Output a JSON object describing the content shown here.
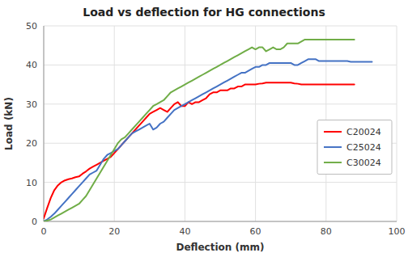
{
  "chart_data": {
    "type": "line",
    "title": "Load vs deflection for HG connections",
    "xlabel": "Deflection (mm)",
    "ylabel": "Load (kN)",
    "xlim": [
      0,
      100
    ],
    "ylim": [
      0,
      50
    ],
    "xticks": [
      0,
      20,
      40,
      60,
      80,
      100
    ],
    "yticks": [
      0,
      10,
      20,
      30,
      40,
      50
    ],
    "grid": true,
    "legend": "right",
    "series": [
      {
        "name": "C20024",
        "color": "#FF0000",
        "x": [
          0,
          1,
          2,
          3,
          4,
          5,
          6,
          7,
          8,
          9,
          10,
          11,
          12,
          13,
          14,
          15,
          16,
          17,
          18,
          19,
          20,
          21,
          22,
          23,
          24,
          25,
          26,
          27,
          28,
          29,
          30,
          31,
          32,
          33,
          34,
          35,
          36,
          37,
          38,
          39,
          40,
          41,
          42,
          43,
          44,
          45,
          46,
          47,
          48,
          49,
          50,
          51,
          52,
          53,
          54,
          55,
          56,
          57,
          58,
          59,
          60,
          61,
          62,
          63,
          64,
          65,
          66,
          67,
          68,
          69,
          70,
          71,
          72,
          73,
          74,
          75,
          76,
          77,
          78,
          79,
          80,
          81,
          82,
          83,
          84,
          85,
          86,
          87,
          88
        ],
        "values": [
          0.8,
          3.5,
          6.0,
          8.0,
          9.2,
          10.0,
          10.5,
          10.8,
          11.0,
          11.3,
          11.5,
          12.2,
          12.8,
          13.5,
          14.0,
          14.5,
          15.0,
          15.5,
          16.0,
          16.5,
          17.5,
          18.5,
          19.5,
          20.5,
          21.5,
          22.5,
          23.5,
          24.5,
          25.5,
          26.5,
          27.5,
          28.0,
          28.5,
          29.0,
          28.5,
          28.0,
          29.0,
          30.0,
          30.5,
          29.5,
          29.5,
          30.5,
          30.0,
          30.5,
          30.5,
          31.0,
          31.5,
          32.5,
          33.0,
          33.0,
          33.5,
          33.5,
          33.5,
          34.0,
          34.0,
          34.5,
          34.5,
          35.0,
          35.0,
          35.0,
          35.0,
          35.2,
          35.3,
          35.5,
          35.5,
          35.5,
          35.5,
          35.5,
          35.5,
          35.5,
          35.5,
          35.3,
          35.2,
          35.0,
          35.0,
          35.0,
          35.0,
          35.0,
          35.0,
          35.0,
          35.0,
          35.0,
          35.0,
          35.0,
          35.0,
          35.0,
          35.0,
          35.0,
          35.0
        ]
      },
      {
        "name": "C25024",
        "color": "#4472C4",
        "x": [
          0,
          1,
          2,
          3,
          4,
          5,
          6,
          7,
          8,
          9,
          10,
          11,
          12,
          13,
          14,
          15,
          16,
          17,
          18,
          19,
          20,
          21,
          22,
          23,
          24,
          25,
          26,
          27,
          28,
          29,
          30,
          31,
          32,
          33,
          34,
          35,
          36,
          37,
          38,
          39,
          40,
          41,
          42,
          43,
          44,
          45,
          46,
          47,
          48,
          49,
          50,
          51,
          52,
          53,
          54,
          55,
          56,
          57,
          58,
          59,
          60,
          61,
          62,
          63,
          64,
          65,
          66,
          67,
          68,
          69,
          70,
          71,
          72,
          73,
          74,
          75,
          76,
          77,
          78,
          79,
          80,
          81,
          82,
          83,
          84,
          85,
          86,
          87,
          88,
          89,
          90,
          91,
          92,
          93
        ],
        "values": [
          0.0,
          0.5,
          1.2,
          2.0,
          3.0,
          4.0,
          5.0,
          6.0,
          7.0,
          8.0,
          9.0,
          10.0,
          11.0,
          12.0,
          12.5,
          13.0,
          14.5,
          16.0,
          17.0,
          17.5,
          18.0,
          18.5,
          19.5,
          20.5,
          21.5,
          22.5,
          23.0,
          23.5,
          24.0,
          24.5,
          25.0,
          23.5,
          24.0,
          25.0,
          25.5,
          26.5,
          27.5,
          28.5,
          29.0,
          29.5,
          30.0,
          30.5,
          31.0,
          31.5,
          32.0,
          32.5,
          33.0,
          33.5,
          34.0,
          34.5,
          35.0,
          35.5,
          36.0,
          36.5,
          37.0,
          37.5,
          38.0,
          38.0,
          38.5,
          39.0,
          39.5,
          39.5,
          40.0,
          40.0,
          40.5,
          40.5,
          40.5,
          40.5,
          40.5,
          40.5,
          40.5,
          40.0,
          40.0,
          40.5,
          41.0,
          41.5,
          41.5,
          41.5,
          41.0,
          41.0,
          41.0,
          41.0,
          41.0,
          41.0,
          41.0,
          41.0,
          41.0,
          40.8,
          40.8,
          40.8,
          40.8,
          40.8,
          40.8,
          40.8
        ]
      },
      {
        "name": "C30024",
        "color": "#70AD47",
        "x": [
          0,
          1,
          2,
          3,
          4,
          5,
          6,
          7,
          8,
          9,
          10,
          11,
          12,
          13,
          14,
          15,
          16,
          17,
          18,
          19,
          20,
          21,
          22,
          23,
          24,
          25,
          26,
          27,
          28,
          29,
          30,
          31,
          32,
          33,
          34,
          35,
          36,
          37,
          38,
          39,
          40,
          41,
          42,
          43,
          44,
          45,
          46,
          47,
          48,
          49,
          50,
          51,
          52,
          53,
          54,
          55,
          56,
          57,
          58,
          59,
          60,
          61,
          62,
          63,
          64,
          65,
          66,
          67,
          68,
          69,
          70,
          71,
          72,
          73,
          74,
          75,
          76,
          77,
          78,
          79,
          80,
          81,
          82,
          83,
          84,
          85,
          86,
          87,
          88
        ],
        "values": [
          0.0,
          0.2,
          0.5,
          1.0,
          1.5,
          2.0,
          2.5,
          3.0,
          3.5,
          4.0,
          4.5,
          5.5,
          6.5,
          8.0,
          9.5,
          11.0,
          12.5,
          14.0,
          15.5,
          17.0,
          18.5,
          20.0,
          21.0,
          21.5,
          22.5,
          23.5,
          24.5,
          25.5,
          26.5,
          27.5,
          28.5,
          29.5,
          30.0,
          30.5,
          31.0,
          32.0,
          33.0,
          33.5,
          34.0,
          34.5,
          35.0,
          35.5,
          36.0,
          36.5,
          37.0,
          37.5,
          38.0,
          38.5,
          39.0,
          39.5,
          40.0,
          40.5,
          41.0,
          41.5,
          42.0,
          42.5,
          43.0,
          43.5,
          44.0,
          44.5,
          44.0,
          44.5,
          44.5,
          43.5,
          44.0,
          44.5,
          44.0,
          44.0,
          44.5,
          45.5,
          45.5,
          45.5,
          45.5,
          46.0,
          46.5,
          46.5,
          46.5,
          46.5,
          46.5,
          46.5,
          46.5,
          46.5,
          46.5,
          46.5,
          46.5,
          46.5,
          46.5,
          46.5,
          46.5
        ]
      }
    ]
  }
}
